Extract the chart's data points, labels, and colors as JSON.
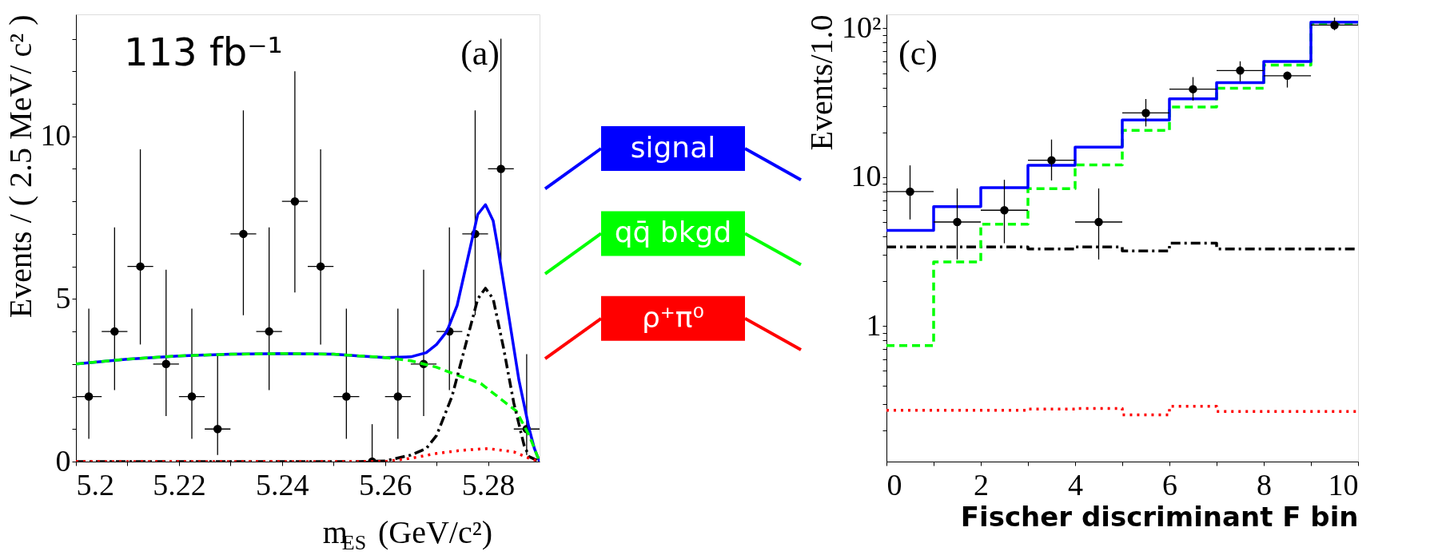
{
  "chart_data": [
    {
      "type": "line",
      "xlabel": "m$_{ES}$ (GeV/c²)",
      "ylabel": "Events / ( 2.5 MeV/ c² )",
      "xlim": [
        5.2,
        5.29
      ],
      "xticks": [
        5.2,
        {
          "value": 5.21,
          "label": null
        },
        5.22,
        {
          "value": 5.23,
          "label": null
        },
        5.24,
        {
          "value": 5.25,
          "label": null
        },
        5.26,
        {
          "value": 5.27,
          "label": null
        },
        5.28
      ],
      "ylim": [
        0,
        13.75
      ],
      "yticks": [
        0,
        {
          "value": 1,
          "label": null
        },
        {
          "value": 2,
          "label": null
        },
        {
          "value": 3,
          "label": null
        },
        {
          "value": 4,
          "label": null
        },
        5,
        {
          "value": 6,
          "label": null
        },
        {
          "value": 7,
          "label": null
        },
        {
          "value": 8,
          "label": null
        },
        {
          "value": 9,
          "label": null
        },
        10,
        {
          "value": 11,
          "label": null
        },
        {
          "value": 12,
          "label": null
        },
        {
          "value": 13,
          "label": null
        }
      ],
      "annotations": [
        "(a)",
        "113 fb⁻¹"
      ],
      "legend": "right",
      "grid": false,
      "series": [
        {
          "type": "scatter",
          "color": "#000000",
          "marker": "circle",
          "x": [
            5.2025,
            5.2075,
            5.2125,
            5.2175,
            5.2225,
            5.2275,
            5.2325,
            5.2375,
            5.2425,
            5.2475,
            5.2525,
            5.2575,
            5.2625,
            5.2675,
            5.2725,
            5.2775,
            5.2825,
            5.2875
          ],
          "values": [
            2,
            4,
            6,
            3,
            2,
            1,
            7,
            4,
            8,
            6,
            2,
            0,
            2,
            3,
            4,
            7,
            9,
            1
          ],
          "errors": [
            [
              0.7,
              4.7
            ],
            [
              2.2,
              7.2
            ],
            [
              3.6,
              9.6
            ],
            [
              1.4,
              5.9
            ],
            [
              0.7,
              4.7
            ],
            [
              0.2,
              3.3
            ],
            [
              4.5,
              10.8
            ],
            [
              2.2,
              7.2
            ],
            [
              5.2,
              12.0
            ],
            [
              3.6,
              9.6
            ],
            [
              0.7,
              4.7
            ],
            [
              0,
              1.15
            ],
            [
              0.7,
              4.7
            ],
            [
              1.4,
              5.9
            ],
            [
              2.2,
              7.2
            ],
            [
              4.5,
              10.8
            ],
            [
              6.2,
              13.0
            ],
            [
              0.2,
              3.3
            ]
          ],
          "xerrors": [
            0.0025,
            0.0025,
            0.0025,
            0.0025,
            0.0025,
            0.0025,
            0.0025,
            0.0025,
            0.0025,
            0.0025,
            0.0025,
            0.0025,
            0.0025,
            0.0025,
            0.0025,
            0.0025,
            0.0025,
            0.0025
          ]
        },
        {
          "name": "signal",
          "color": "#0000ff",
          "line_style": "solid",
          "x": [
            5.2,
            5.21,
            5.22,
            5.23,
            5.24,
            5.25,
            5.255,
            5.26,
            5.265,
            5.268,
            5.27,
            5.272,
            5.274,
            5.276,
            5.278,
            5.2795,
            5.281,
            5.282,
            5.284,
            5.286,
            5.288,
            5.289,
            5.29
          ],
          "values": [
            3.0,
            3.15,
            3.25,
            3.3,
            3.32,
            3.3,
            3.25,
            3.2,
            3.22,
            3.35,
            3.6,
            4.0,
            4.8,
            6.2,
            7.6,
            7.9,
            7.4,
            6.5,
            4.5,
            2.5,
            1.0,
            0.4,
            0
          ]
        },
        {
          "name": "qq̄ bkgd",
          "color": "#00ff00",
          "line_style": "dashed",
          "x": [
            5.2,
            5.21,
            5.22,
            5.23,
            5.24,
            5.25,
            5.255,
            5.26,
            5.265,
            5.27,
            5.275,
            5.2786,
            5.2855,
            5.288,
            5.29
          ],
          "values": [
            3.0,
            3.15,
            3.25,
            3.3,
            3.32,
            3.3,
            3.25,
            3.2,
            3.1,
            2.9,
            2.6,
            2.4,
            1.55,
            0.8,
            0
          ]
        },
        {
          "color": "#000000",
          "line_style": "dashdot",
          "x": [
            5.2,
            5.255,
            5.26,
            5.265,
            5.268,
            5.27,
            5.273,
            5.276,
            5.278,
            5.2795,
            5.281,
            5.283,
            5.285,
            5.287,
            5.288,
            5.29
          ],
          "values": [
            0,
            0,
            0.02,
            0.2,
            0.4,
            0.8,
            2.0,
            3.8,
            5.0,
            5.33,
            5.0,
            3.5,
            1.8,
            0.5,
            0.15,
            0
          ]
        },
        {
          "name": "ρ⁺π⁰",
          "color": "#ff0000",
          "line_style": "dotted",
          "x": [
            5.2,
            5.26,
            5.265,
            5.27,
            5.275,
            5.28,
            5.285,
            5.288,
            5.29
          ],
          "values": [
            0,
            0,
            0.1,
            0.25,
            0.35,
            0.4,
            0.3,
            0.1,
            0
          ]
        }
      ]
    },
    {
      "type": "step",
      "xlabel": "Fischer discriminant F bin",
      "ylabel": "Events/1.0",
      "log": "y",
      "xlim": [
        0,
        10
      ],
      "xticks": [
        0,
        {
          "value": 1,
          "label": null
        },
        2,
        {
          "value": 3,
          "label": null
        },
        4,
        {
          "value": 5,
          "label": null
        },
        6,
        {
          "value": 7,
          "label": null
        },
        8,
        {
          "value": 9,
          "label": null
        },
        10
      ],
      "ylim": [
        0.123,
        124
      ],
      "yticks": [
        {
          "value": 0.2,
          "label": null
        },
        {
          "value": 0.3,
          "label": null
        },
        {
          "value": 0.4,
          "label": null
        },
        {
          "value": 0.5,
          "label": null
        },
        {
          "value": 0.6,
          "label": null
        },
        {
          "value": 0.7,
          "label": null
        },
        {
          "value": 0.8,
          "label": null
        },
        {
          "value": 0.9,
          "label": null
        },
        1,
        {
          "value": 2,
          "label": null
        },
        {
          "value": 3,
          "label": null
        },
        {
          "value": 4,
          "label": null
        },
        {
          "value": 5,
          "label": null
        },
        {
          "value": 6,
          "label": null
        },
        {
          "value": 7,
          "label": null
        },
        {
          "value": 8,
          "label": null
        },
        {
          "value": 9,
          "label": null
        },
        10,
        {
          "value": 20,
          "label": null
        },
        {
          "value": 30,
          "label": null
        },
        {
          "value": 40,
          "label": null
        },
        {
          "value": 50,
          "label": null
        },
        {
          "value": 60,
          "label": null
        },
        {
          "value": 70,
          "label": null
        },
        {
          "value": 80,
          "label": null
        },
        {
          "value": 90,
          "label": null
        },
        {
          "value": 100,
          "label": "10²"
        }
      ],
      "annotations": [
        "(c)"
      ],
      "grid": false,
      "series": [
        {
          "color": "#000000",
          "line_style": "dashdot",
          "x": [
            0,
            1,
            2,
            3,
            4,
            5,
            6,
            7,
            8,
            9,
            10
          ],
          "values": [
            3.4,
            3.4,
            3.4,
            3.3,
            3.4,
            3.2,
            3.6,
            3.3,
            3.3,
            3.3,
            3.3
          ]
        },
        {
          "color": "#ff0000",
          "line_style": "dotted",
          "x": [
            0,
            1,
            2,
            3,
            4,
            5,
            6,
            7,
            8,
            9,
            10
          ],
          "values": [
            0.272,
            0.272,
            0.272,
            0.277,
            0.28,
            0.253,
            0.289,
            0.267,
            0.267,
            0.267,
            0.267
          ]
        },
        {
          "color": "#00ff00",
          "line_style": "dashed",
          "x": [
            0,
            1,
            2,
            3,
            4,
            5,
            6,
            7,
            8,
            9,
            10
          ],
          "values": [
            0.74,
            2.7,
            4.84,
            8.36,
            12.1,
            20.6,
            29.6,
            39.6,
            56.6,
            107,
            107
          ]
        },
        {
          "color": "#0000ff",
          "line_style": "solid",
          "x": [
            0,
            1,
            2,
            3,
            4,
            5,
            6,
            7,
            8,
            9,
            10
          ],
          "values": [
            4.39,
            6.35,
            8.5,
            12.0,
            15.9,
            24.2,
            33.6,
            43.2,
            59.8,
            110,
            110
          ]
        },
        {
          "type": "scatter",
          "color": "#000000",
          "marker": "circle",
          "x": [
            0.5,
            1.5,
            2.5,
            3.5,
            4.5,
            5.5,
            6.5,
            7.5,
            8.5,
            9.5
          ],
          "values": [
            8,
            5,
            6,
            13,
            5,
            27,
            39,
            52,
            48,
            105
          ],
          "errors": [
            [
              5.2,
              12.0
            ],
            [
              2.8,
              8.4
            ],
            [
              3.6,
              9.6
            ],
            [
              9.5,
              17.9
            ],
            [
              2.8,
              8.4
            ],
            [
              21.9,
              33.5
            ],
            [
              32.7,
              47
            ],
            [
              44,
              60
            ],
            [
              40,
              51
            ],
            [
              97,
              118
            ]
          ],
          "xerrors": [
            0.5,
            0.5,
            0.5,
            0.5,
            0.5,
            0.5,
            0.5,
            0.5,
            0.5,
            0.5
          ]
        }
      ]
    }
  ]
}
